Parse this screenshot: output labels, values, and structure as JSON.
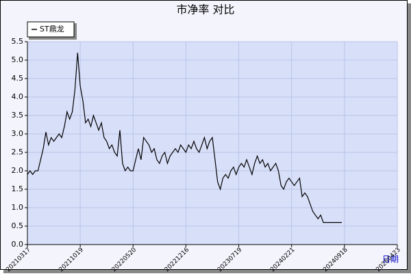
{
  "chart_data": {
    "type": "line",
    "title": "市净率  对比",
    "x_label": "日期",
    "categories": [
      "20210317",
      null,
      null,
      null,
      null,
      null,
      null,
      null,
      null,
      null,
      null,
      null,
      null,
      null,
      null,
      null,
      null,
      null,
      null,
      null,
      "20211019",
      null,
      null,
      null,
      null,
      null,
      null,
      null,
      null,
      null,
      null,
      null,
      null,
      null,
      null,
      null,
      null,
      null,
      null,
      null,
      "20220520",
      null,
      null,
      null,
      null,
      null,
      null,
      null,
      null,
      null,
      null,
      null,
      null,
      null,
      null,
      null,
      null,
      null,
      null,
      null,
      "20221216",
      null,
      null,
      null,
      null,
      null,
      null,
      null,
      null,
      null,
      null,
      null,
      null,
      null,
      null,
      null,
      null,
      null,
      null,
      null,
      "20230719",
      null,
      null,
      null,
      null,
      null,
      null,
      null,
      null,
      null,
      null,
      null,
      null,
      null,
      null,
      null,
      null,
      null,
      null,
      null,
      "20240221",
      null,
      null,
      null,
      null,
      null,
      null,
      null,
      null,
      null,
      null,
      null,
      null,
      null,
      null,
      null,
      null,
      null,
      null,
      null,
      "20240918",
      null,
      null,
      null,
      null,
      null,
      null,
      null,
      null,
      null,
      null,
      null,
      null,
      null,
      null,
      null,
      null,
      null,
      null,
      null,
      "20250423"
    ],
    "series": [
      {
        "name": "ST鼎龙",
        "color": "#000000",
        "values": [
          1.9,
          2.0,
          1.9,
          2.0,
          2.0,
          2.3,
          2.6,
          3.05,
          2.7,
          2.9,
          2.8,
          2.9,
          3.0,
          2.9,
          3.2,
          3.6,
          3.4,
          3.6,
          4.2,
          5.2,
          4.3,
          3.9,
          3.3,
          3.4,
          3.2,
          3.5,
          3.3,
          3.1,
          3.3,
          2.9,
          2.8,
          2.6,
          2.7,
          2.5,
          2.4,
          3.1,
          2.2,
          2.0,
          2.1,
          2.0,
          2.0,
          2.3,
          2.6,
          2.3,
          2.9,
          2.8,
          2.7,
          2.5,
          2.6,
          2.3,
          2.2,
          2.4,
          2.5,
          2.2,
          2.4,
          2.5,
          2.6,
          2.5,
          2.7,
          2.6,
          2.5,
          2.7,
          2.6,
          2.8,
          2.6,
          2.5,
          2.7,
          2.9,
          2.6,
          2.8,
          2.9,
          2.3,
          1.7,
          1.5,
          1.8,
          1.9,
          1.8,
          2.0,
          2.1,
          1.9,
          2.1,
          2.2,
          2.1,
          2.3,
          2.1,
          1.9,
          2.2,
          2.4,
          2.2,
          2.3,
          2.1,
          2.2,
          2.0,
          2.1,
          2.2,
          2.0,
          1.6,
          1.5,
          1.7,
          1.8,
          1.7,
          1.6,
          1.7,
          1.8,
          1.3,
          1.4,
          1.3,
          1.1,
          0.9,
          0.8,
          0.7,
          0.8,
          0.6,
          0.6,
          0.6,
          0.6,
          0.6,
          0.6,
          0.6,
          0.6,
          null,
          null,
          null,
          null,
          null,
          null,
          null,
          null,
          null,
          null,
          null,
          null,
          null,
          null,
          null,
          null,
          null,
          null,
          null,
          null,
          null
        ]
      }
    ],
    "ylim": [
      0,
      5.5
    ],
    "yticks": [
      {
        "value": 0,
        "label": "0.0"
      },
      0.5,
      {
        "value": 1,
        "label": "1.0"
      },
      1.5,
      {
        "value": 2,
        "label": "2.0"
      },
      2.5,
      {
        "value": 3,
        "label": "3.0"
      },
      3.5,
      {
        "value": 4,
        "label": "4.0"
      },
      4.5,
      {
        "value": 5,
        "label": "5.0"
      },
      5.5
    ],
    "grid": true,
    "legend": "top-left"
  }
}
